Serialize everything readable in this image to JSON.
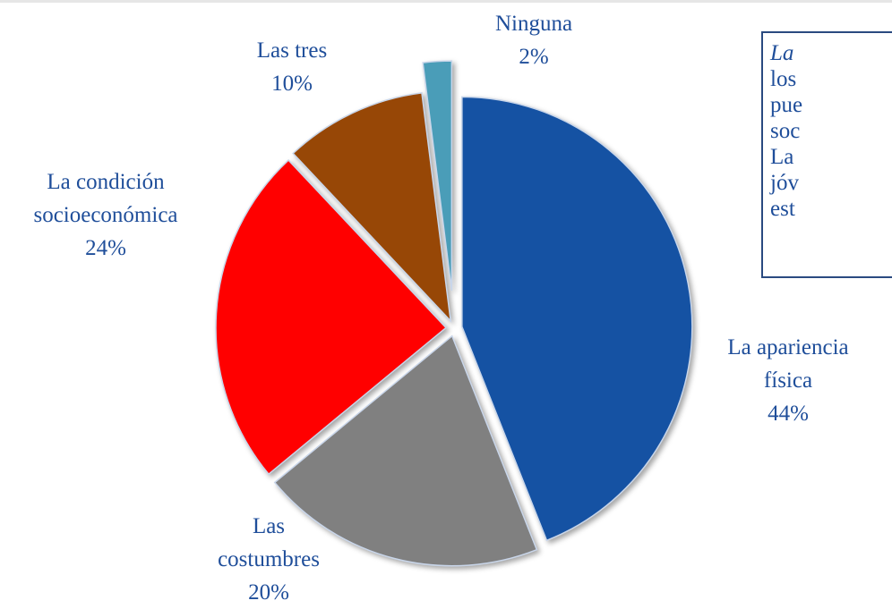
{
  "chart_data": {
    "type": "pie",
    "categories": [
      "La apariencia física",
      "Las costumbres",
      "La condición socioeconómica",
      "Las tres",
      "Ninguna"
    ],
    "values": [
      44,
      20,
      24,
      10,
      2
    ],
    "value_labels": [
      "44%",
      "20%",
      "24%",
      "10%",
      "2%"
    ],
    "colors": [
      "#1552a3",
      "#808080",
      "#ff0000",
      "#974706",
      "#4a9db8"
    ],
    "annotation": [
      "La",
      "los",
      "pue",
      "soc",
      "La",
      "jóv",
      "est"
    ]
  }
}
